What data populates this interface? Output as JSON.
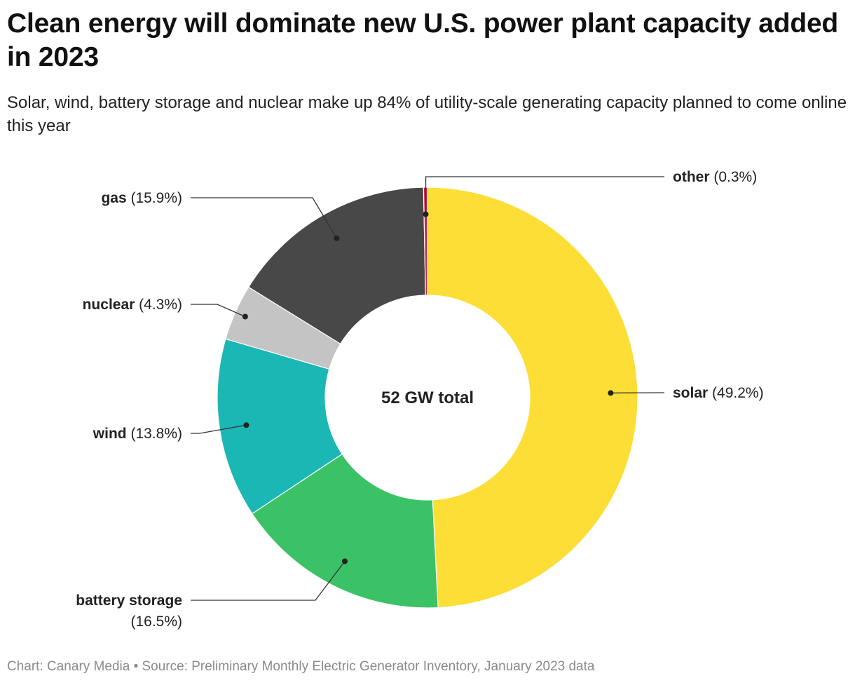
{
  "title": "Clean energy will dominate new U.S. power plant capacity added in 2023",
  "subtitle": "Solar, wind, battery storage and nuclear make up 84% of utility-scale generating capacity planned to come online this year",
  "footer": "Chart: Canary Media • Source: Preliminary Monthly Electric Generator Inventory, January 2023 data",
  "chart_data": {
    "type": "pie",
    "variant": "donut",
    "center_label": "52 GW total",
    "legend": "none",
    "slices": [
      {
        "name": "solar",
        "value": 49.2,
        "pct_label": "(49.2%)",
        "color": "#FDDE36"
      },
      {
        "name": "battery storage",
        "value": 16.5,
        "pct_label": "(16.5%)",
        "color": "#3CC266"
      },
      {
        "name": "wind",
        "value": 13.8,
        "pct_label": "(13.8%)",
        "color": "#1BB7B4"
      },
      {
        "name": "nuclear",
        "value": 4.3,
        "pct_label": "(4.3%)",
        "color": "#C4C4C4"
      },
      {
        "name": "gas",
        "value": 15.9,
        "pct_label": "(15.9%)",
        "color": "#484848"
      },
      {
        "name": "other",
        "value": 0.3,
        "pct_label": "(0.3%)",
        "color": "#C7254E"
      }
    ]
  }
}
